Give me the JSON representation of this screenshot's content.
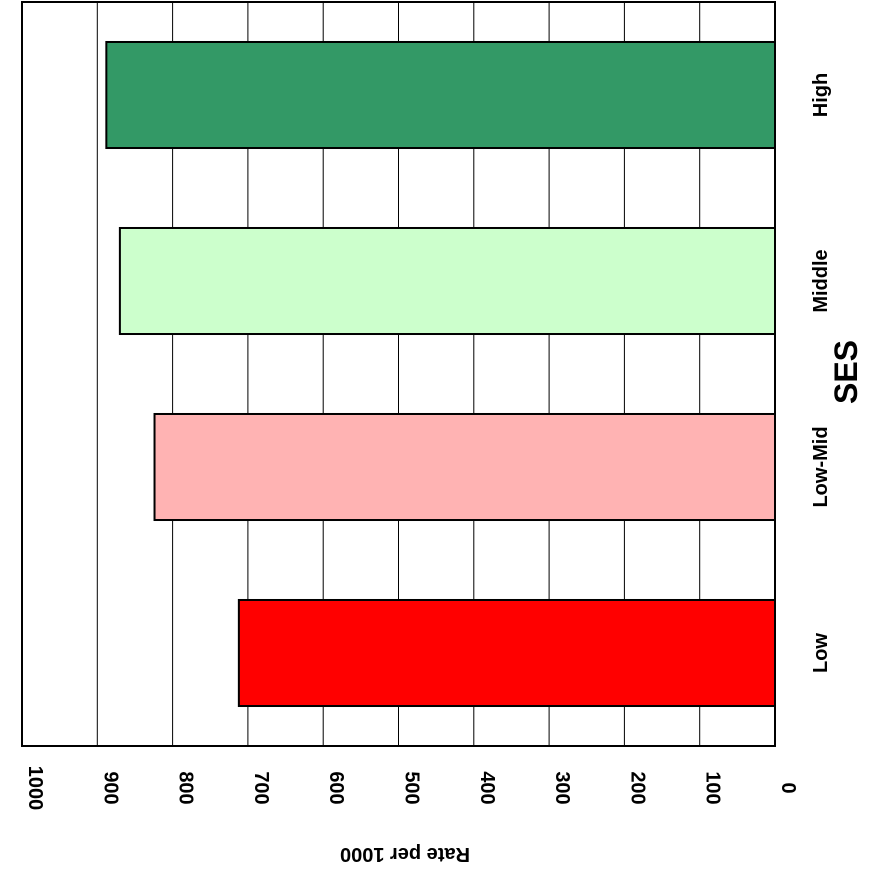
{
  "chart_data": {
    "type": "bar",
    "orientation": "horizontal",
    "rotated": "90deg clockwise",
    "categories": [
      "Low",
      "Low-Mid",
      "Middle",
      "High"
    ],
    "values": [
      712,
      824,
      870,
      888
    ],
    "colors": [
      "#ff0000",
      "#ffb3b3",
      "#ccffcc",
      "#339966"
    ],
    "title": "",
    "xlabel": "Rate per 1000",
    "ylabel": "SES",
    "xlim": [
      0,
      1000
    ],
    "ticks": [
      "0",
      "100",
      "200",
      "300",
      "400",
      "500",
      "600",
      "700",
      "800",
      "900",
      "1000"
    ],
    "grid": true,
    "legend": "none"
  }
}
